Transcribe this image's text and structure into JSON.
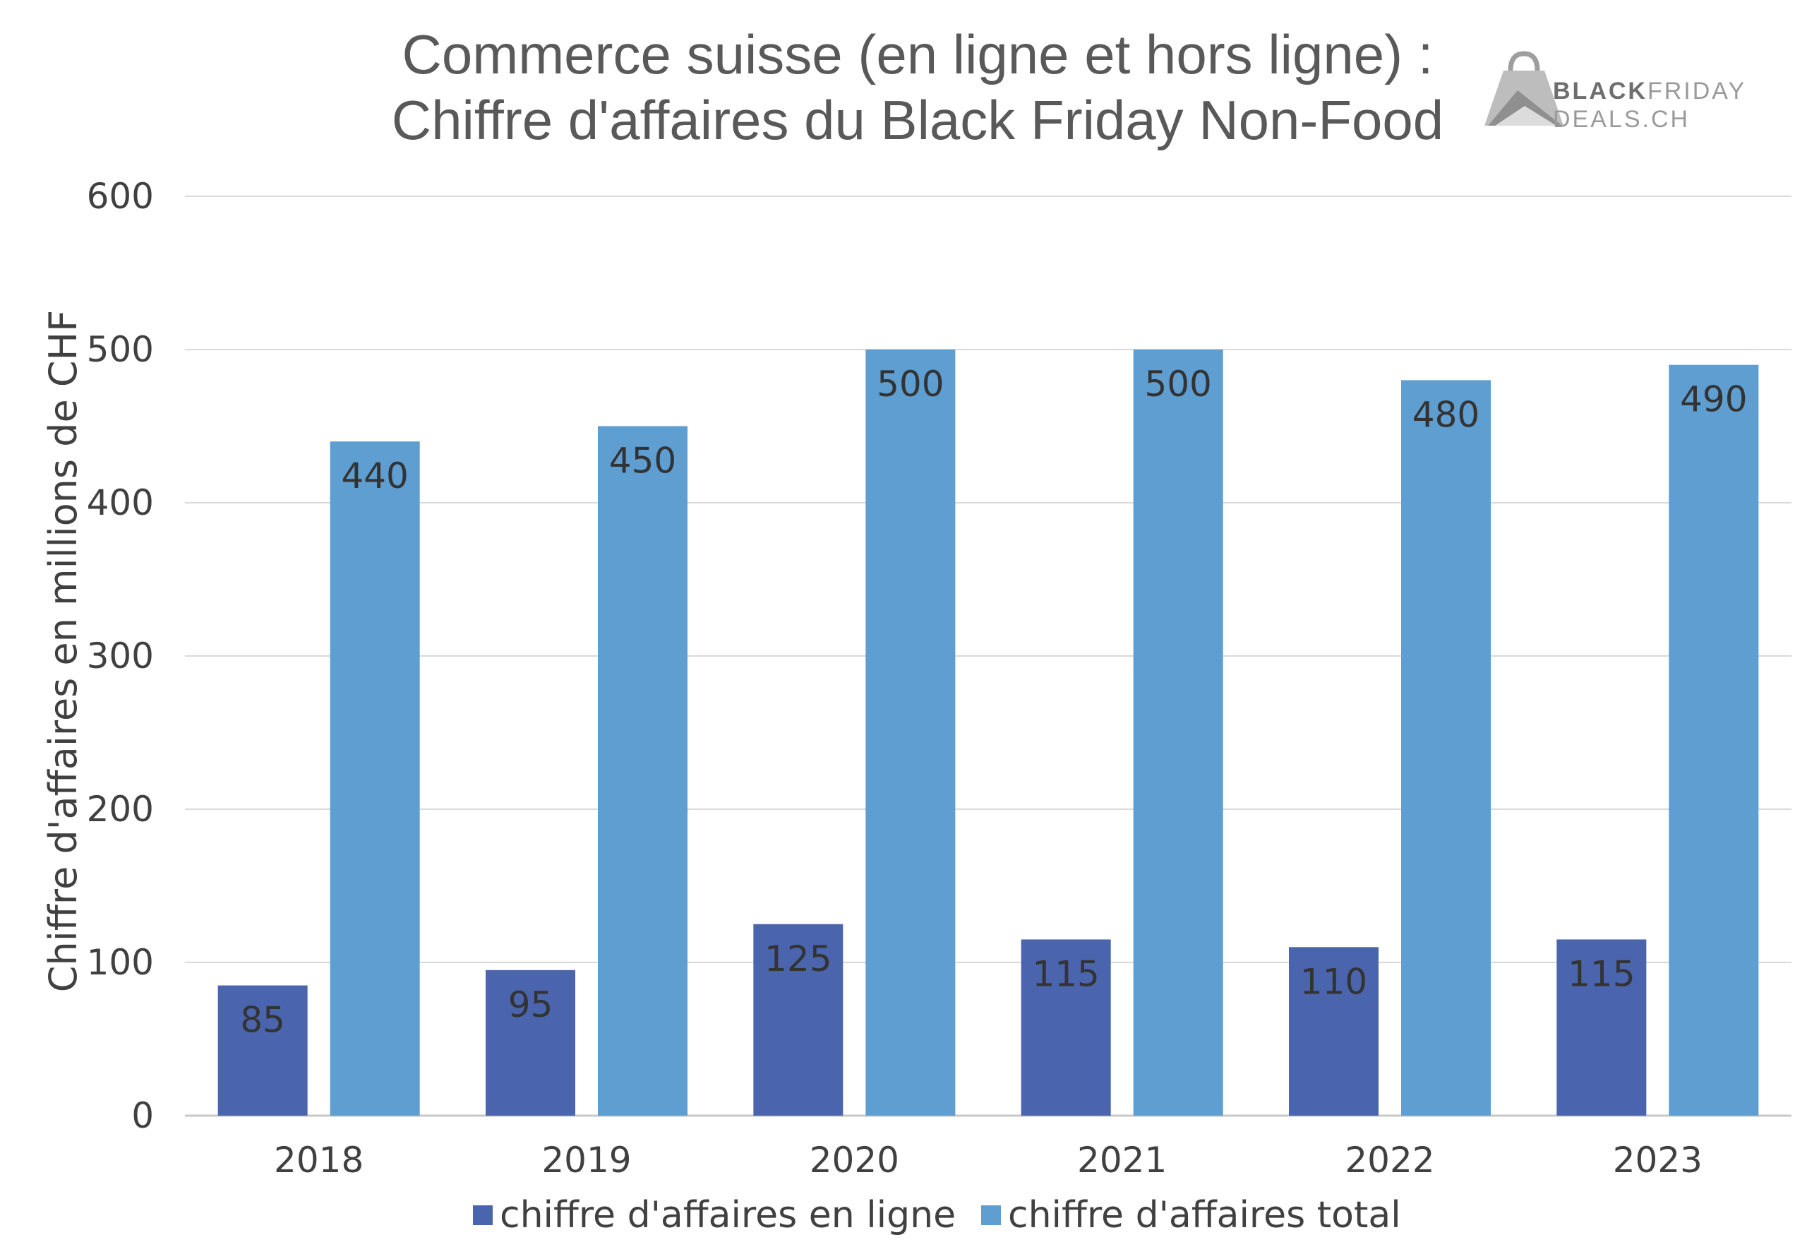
{
  "chart_data": {
    "type": "bar",
    "title": [
      "Commerce suisse (en ligne et hors ligne) :",
      "Chiffre d'affaires du Black Friday Non-Food"
    ],
    "xlabel": "",
    "ylabel": "Chiffre d'affaires en millions de CHF",
    "categories": [
      "2018",
      "2019",
      "2020",
      "2021",
      "2022",
      "2023"
    ],
    "series": [
      {
        "name": "chiffre d'affaires en ligne",
        "color": "#4a65ad",
        "values": [
          85,
          95,
          125,
          115,
          110,
          115
        ]
      },
      {
        "name": "chiffre d'affaires total",
        "color": "#5f9ed1",
        "values": [
          440,
          450,
          500,
          500,
          480,
          490
        ]
      }
    ],
    "ylim": [
      0,
      600
    ],
    "yticks": [
      0,
      100,
      200,
      300,
      400,
      500,
      600
    ],
    "grid": true,
    "legend_position": "bottom",
    "data_labels": true
  },
  "logo": {
    "line1_bold": "BLACK",
    "line1_light": "FRIDAY",
    "line2": "DEALS.CH",
    "icon": "shopping-bag-icon"
  },
  "colors": {
    "title": "#595959",
    "grid": "#d9d9d9",
    "text": "#404040"
  }
}
